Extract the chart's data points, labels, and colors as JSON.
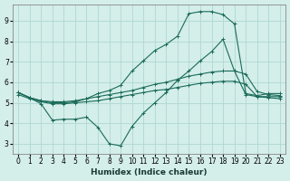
{
  "xlabel": "Humidex (Indice chaleur)",
  "background_color": "#d4eeea",
  "grid_color": "#aed8d2",
  "line_color": "#1a6b5a",
  "xlim": [
    -0.5,
    23.5
  ],
  "ylim": [
    2.5,
    9.8
  ],
  "xticks": [
    0,
    1,
    2,
    3,
    4,
    5,
    6,
    7,
    8,
    9,
    10,
    11,
    12,
    13,
    14,
    15,
    16,
    17,
    18,
    19,
    20,
    21,
    22,
    23
  ],
  "yticks": [
    3,
    4,
    5,
    6,
    7,
    8,
    9
  ],
  "line1_x": [
    0,
    1,
    2,
    3,
    4,
    5,
    6,
    7,
    8,
    9,
    10,
    11,
    12,
    13,
    14,
    15,
    16,
    17,
    18,
    19,
    20,
    21,
    22,
    23
  ],
  "line1_y": [
    5.5,
    5.25,
    4.95,
    4.15,
    4.2,
    4.2,
    4.3,
    3.8,
    3.0,
    2.9,
    3.85,
    4.5,
    5.0,
    5.5,
    6.1,
    6.55,
    7.05,
    7.5,
    8.1,
    6.55,
    5.4,
    5.3,
    5.3,
    5.3
  ],
  "line2_x": [
    0,
    1,
    2,
    3,
    4,
    5,
    6,
    7,
    8,
    9,
    10,
    11,
    12,
    13,
    14,
    15,
    16,
    17,
    18,
    19,
    20,
    21,
    22,
    23
  ],
  "line2_y": [
    5.5,
    5.25,
    5.1,
    5.05,
    5.05,
    5.1,
    5.2,
    5.3,
    5.4,
    5.5,
    5.6,
    5.75,
    5.9,
    6.0,
    6.15,
    6.3,
    6.4,
    6.5,
    6.55,
    6.55,
    6.4,
    5.55,
    5.4,
    5.35
  ],
  "line3_x": [
    0,
    1,
    2,
    3,
    4,
    5,
    6,
    7,
    8,
    9,
    10,
    11,
    12,
    13,
    14,
    15,
    16,
    17,
    18,
    19,
    20,
    21,
    22,
    23
  ],
  "line3_y": [
    5.4,
    5.2,
    5.05,
    4.95,
    4.95,
    5.0,
    5.05,
    5.1,
    5.2,
    5.3,
    5.4,
    5.5,
    5.6,
    5.65,
    5.75,
    5.85,
    5.95,
    6.0,
    6.05,
    6.05,
    5.9,
    5.3,
    5.25,
    5.2
  ],
  "line4_x": [
    0,
    1,
    2,
    3,
    4,
    5,
    6,
    7,
    8,
    9,
    10,
    11,
    12,
    13,
    14,
    15,
    16,
    17,
    18,
    19,
    20,
    21,
    22,
    23
  ],
  "line4_y": [
    5.5,
    5.25,
    5.1,
    5.0,
    5.0,
    5.05,
    5.2,
    5.45,
    5.6,
    5.85,
    6.55,
    7.05,
    7.55,
    7.85,
    8.25,
    9.35,
    9.45,
    9.45,
    9.3,
    8.85,
    5.45,
    5.35,
    5.45,
    5.45
  ]
}
